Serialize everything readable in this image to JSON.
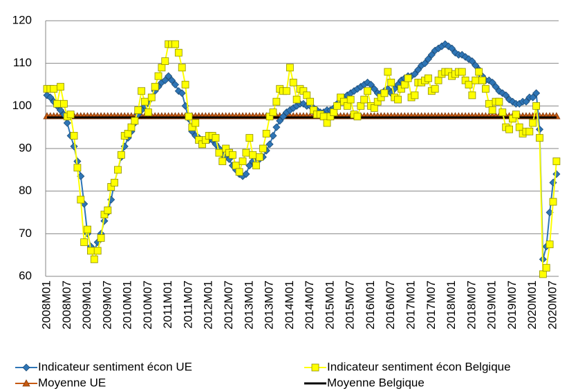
{
  "chart_data": {
    "type": "line",
    "categories": [
      "2008M01",
      null,
      null,
      null,
      null,
      null,
      "2008M07",
      null,
      null,
      null,
      null,
      null,
      "2009M01",
      null,
      null,
      null,
      null,
      null,
      "2009M07",
      null,
      null,
      null,
      null,
      null,
      "2010M01",
      null,
      null,
      null,
      null,
      null,
      "2010M07",
      null,
      null,
      null,
      null,
      null,
      "2011M01",
      null,
      null,
      null,
      null,
      null,
      "2011M07",
      null,
      null,
      null,
      null,
      null,
      "2012M01",
      null,
      null,
      null,
      null,
      null,
      "2012M07",
      null,
      null,
      null,
      null,
      null,
      "2013M01",
      null,
      null,
      null,
      null,
      null,
      "2013M07",
      null,
      null,
      null,
      null,
      null,
      "2014M01",
      null,
      null,
      null,
      null,
      null,
      "2014M07",
      null,
      null,
      null,
      null,
      null,
      "2015M01",
      null,
      null,
      null,
      null,
      null,
      "2015M07",
      null,
      null,
      null,
      null,
      null,
      "2016M01",
      null,
      null,
      null,
      null,
      null,
      "2016M07",
      null,
      null,
      null,
      null,
      null,
      "2017M01",
      null,
      null,
      null,
      null,
      null,
      "2017M07",
      null,
      null,
      null,
      null,
      null,
      "2018M01",
      null,
      null,
      null,
      null,
      null,
      "2018M07",
      null,
      null,
      null,
      null,
      null,
      "2019M01",
      null,
      null,
      null,
      null,
      null,
      "2019M07",
      null,
      null,
      null,
      null,
      null,
      "2020M01",
      null,
      null,
      null,
      null,
      null,
      "2020M07",
      null
    ],
    "series": [
      {
        "name": "Indicateur sentiment écon UE",
        "color": "#2e75b6",
        "marker": "diamond",
        "values": [
          102.5,
          102,
          101,
          100,
          99,
          98,
          96,
          93,
          90.5,
          87,
          83.5,
          77,
          70,
          67,
          66,
          68,
          70,
          73,
          75,
          78,
          82,
          85,
          88,
          90.5,
          92.5,
          94,
          96,
          98,
          99,
          100,
          101,
          102,
          103.5,
          104.5,
          105.5,
          106,
          107,
          106,
          105,
          103.5,
          103,
          100,
          97,
          94,
          93,
          92.5,
          92,
          92,
          92,
          92,
          91,
          90,
          88.5,
          88,
          87.5,
          86,
          85,
          84,
          83.5,
          84,
          86,
          87,
          88,
          87.5,
          88,
          89.5,
          91,
          93,
          95,
          96.5,
          97.5,
          98.5,
          99,
          99.5,
          100,
          100.5,
          100.5,
          100,
          100,
          99.5,
          99,
          98.5,
          98.5,
          99,
          99,
          99.5,
          100.5,
          101.5,
          102,
          102.5,
          103,
          103.5,
          104,
          104.5,
          105,
          105.5,
          105,
          104,
          103,
          103,
          103.5,
          104,
          103,
          104,
          105,
          106,
          106.5,
          107,
          107,
          107.5,
          108.5,
          109.5,
          110,
          111,
          112,
          113,
          113.5,
          114,
          114.5,
          114,
          113.5,
          112.5,
          112,
          112,
          111.5,
          111,
          110.5,
          109.5,
          108.5,
          107,
          106,
          106,
          105.5,
          104.5,
          103.5,
          103,
          102.5,
          101.5,
          101,
          100.5,
          100.5,
          101,
          101,
          102,
          102,
          103,
          94.5,
          64,
          67,
          75,
          82,
          84
        ]
      },
      {
        "name": "Indicateur sentiment écon Belgique",
        "color": "#ffff00",
        "marker": "square",
        "values": [
          104,
          104,
          104,
          100.5,
          104.5,
          100.5,
          97.5,
          98,
          93,
          85.5,
          78,
          68,
          71,
          66,
          64,
          66,
          69,
          74.5,
          75.5,
          81,
          82,
          85,
          88.5,
          93,
          93.5,
          95,
          96.5,
          99,
          103.5,
          101,
          98.5,
          102,
          104.5,
          107,
          109,
          110.5,
          114.5,
          114.5,
          114.5,
          112.5,
          109,
          105,
          97.5,
          95,
          96,
          92,
          91,
          92,
          93,
          93,
          92.5,
          89,
          87,
          90,
          89,
          88.5,
          86,
          84.5,
          87,
          89,
          92.5,
          88.5,
          86,
          88,
          90,
          93.5,
          97.5,
          98.5,
          101,
          104,
          103.5,
          103.5,
          109,
          105.5,
          101.5,
          104,
          103.5,
          102.5,
          101,
          99,
          98,
          98,
          97.5,
          96,
          97.5,
          98.5,
          100,
          102,
          101,
          100,
          101.5,
          98,
          97.5,
          100,
          101.5,
          103.5,
          100,
          99.5,
          101,
          102,
          103,
          108,
          105.5,
          102,
          101.5,
          104,
          105,
          106.5,
          102,
          102.5,
          105.5,
          105.5,
          106,
          106.5,
          103.5,
          104,
          106,
          107.5,
          108,
          108,
          107,
          107.5,
          108,
          108,
          106,
          105,
          102.5,
          106,
          108,
          106,
          104,
          100.5,
          99,
          101,
          101,
          98.5,
          95,
          94.5,
          97,
          98,
          95,
          93.5,
          94,
          94,
          96,
          100,
          92.5,
          60.5,
          62,
          67.5,
          77.5,
          87
        ]
      },
      {
        "name": "Moyenne UE",
        "color": "#c65911",
        "marker": "triangle",
        "values": [
          97.6,
          97.6,
          97.6,
          97.6,
          97.6,
          97.6,
          97.6,
          97.6,
          97.6,
          97.6,
          97.6,
          97.6,
          97.6,
          97.6,
          97.6,
          97.6,
          97.6,
          97.6,
          97.6,
          97.6,
          97.6,
          97.6,
          97.6,
          97.6,
          97.6,
          97.6,
          97.6,
          97.6,
          97.6,
          97.6,
          97.6,
          97.6,
          97.6,
          97.6,
          97.6,
          97.6,
          97.6,
          97.6,
          97.6,
          97.6,
          97.6,
          97.6,
          97.6,
          97.6,
          97.6,
          97.6,
          97.6,
          97.6,
          97.6,
          97.6,
          97.6,
          97.6,
          97.6,
          97.6,
          97.6,
          97.6,
          97.6,
          97.6,
          97.6,
          97.6,
          97.6,
          97.6,
          97.6,
          97.6,
          97.6,
          97.6,
          97.6,
          97.6,
          97.6,
          97.6,
          97.6,
          97.6,
          97.6,
          97.6,
          97.6,
          97.6,
          97.6,
          97.6,
          97.6,
          97.6,
          97.6,
          97.6,
          97.6,
          97.6,
          97.6,
          97.6,
          97.6,
          97.6,
          97.6,
          97.6,
          97.6,
          97.6,
          97.6,
          97.6,
          97.6,
          97.6,
          97.6,
          97.6,
          97.6,
          97.6,
          97.6,
          97.6,
          97.6,
          97.6,
          97.6,
          97.6,
          97.6,
          97.6,
          97.6,
          97.6,
          97.6,
          97.6,
          97.6,
          97.6,
          97.6,
          97.6,
          97.6,
          97.6,
          97.6,
          97.6,
          97.6,
          97.6,
          97.6,
          97.6,
          97.6,
          97.6,
          97.6,
          97.6,
          97.6,
          97.6,
          97.6,
          97.6,
          97.6,
          97.6,
          97.6,
          97.6,
          97.6,
          97.6,
          97.6,
          97.6,
          97.6,
          97.6,
          97.6,
          97.6,
          97.6,
          97.6,
          97.6,
          97.6,
          97.6,
          97.6,
          97.6,
          97.6
        ]
      },
      {
        "name": "Moyenne Belgique",
        "color": "#000000",
        "marker": "none",
        "values": [
          97.3,
          97.3,
          97.3,
          97.3,
          97.3,
          97.3,
          97.3,
          97.3,
          97.3,
          97.3,
          97.3,
          97.3,
          97.3,
          97.3,
          97.3,
          97.3,
          97.3,
          97.3,
          97.3,
          97.3,
          97.3,
          97.3,
          97.3,
          97.3,
          97.3,
          97.3,
          97.3,
          97.3,
          97.3,
          97.3,
          97.3,
          97.3,
          97.3,
          97.3,
          97.3,
          97.3,
          97.3,
          97.3,
          97.3,
          97.3,
          97.3,
          97.3,
          97.3,
          97.3,
          97.3,
          97.3,
          97.3,
          97.3,
          97.3,
          97.3,
          97.3,
          97.3,
          97.3,
          97.3,
          97.3,
          97.3,
          97.3,
          97.3,
          97.3,
          97.3,
          97.3,
          97.3,
          97.3,
          97.3,
          97.3,
          97.3,
          97.3,
          97.3,
          97.3,
          97.3,
          97.3,
          97.3,
          97.3,
          97.3,
          97.3,
          97.3,
          97.3,
          97.3,
          97.3,
          97.3,
          97.3,
          97.3,
          97.3,
          97.3,
          97.3,
          97.3,
          97.3,
          97.3,
          97.3,
          97.3,
          97.3,
          97.3,
          97.3,
          97.3,
          97.3,
          97.3,
          97.3,
          97.3,
          97.3,
          97.3,
          97.3,
          97.3,
          97.3,
          97.3,
          97.3,
          97.3,
          97.3,
          97.3,
          97.3,
          97.3,
          97.3,
          97.3,
          97.3,
          97.3,
          97.3,
          97.3,
          97.3,
          97.3,
          97.3,
          97.3,
          97.3,
          97.3,
          97.3,
          97.3,
          97.3,
          97.3,
          97.3,
          97.3,
          97.3,
          97.3,
          97.3,
          97.3,
          97.3,
          97.3,
          97.3,
          97.3,
          97.3,
          97.3,
          97.3,
          97.3,
          97.3,
          97.3,
          97.3,
          97.3,
          97.3,
          97.3,
          97.3,
          97.3,
          97.3,
          97.3,
          97.3,
          97.3
        ]
      }
    ],
    "ylim": [
      60,
      120
    ],
    "yticks": [
      60,
      70,
      80,
      90,
      100,
      110,
      120
    ],
    "grid": true
  }
}
